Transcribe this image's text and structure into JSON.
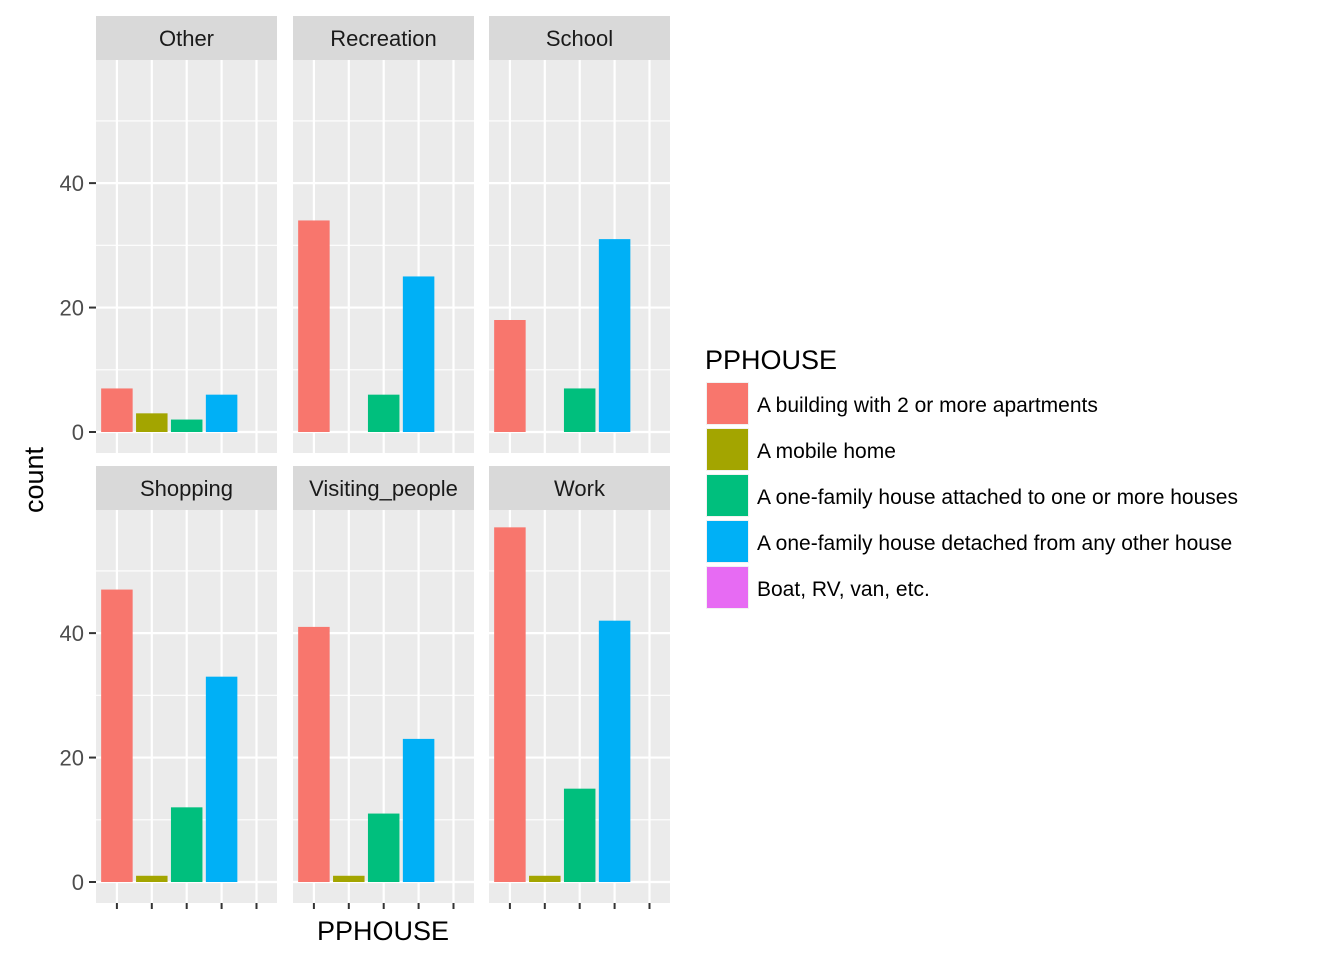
{
  "chart_data": {
    "type": "bar",
    "xlabel": "PPHOUSE",
    "ylabel": "count",
    "ylim": [
      0,
      60
    ],
    "yticks": [
      0,
      20,
      40
    ],
    "categories": [
      "A building with 2 or more apartments",
      "A mobile home",
      "A one-family house attached to one or more houses",
      "A one-family house detached from any other house",
      "Boat, RV, van, etc."
    ],
    "legend": {
      "title": "PPHOUSE",
      "position": "right",
      "colors": [
        "#F8766D",
        "#A3A500",
        "#00BF7D",
        "#00B0F6",
        "#E76BF3"
      ]
    },
    "facets": [
      {
        "name": "Other",
        "values": [
          7,
          3,
          2,
          6,
          0
        ]
      },
      {
        "name": "Recreation",
        "values": [
          34,
          0,
          6,
          25,
          0
        ]
      },
      {
        "name": "School",
        "values": [
          18,
          0,
          7,
          31,
          0
        ]
      },
      {
        "name": "Shopping",
        "values": [
          47,
          1,
          12,
          33,
          0
        ]
      },
      {
        "name": "Visiting_people",
        "values": [
          41,
          1,
          11,
          23,
          0
        ]
      },
      {
        "name": "Work",
        "values": [
          57,
          1,
          15,
          42,
          0
        ]
      }
    ]
  }
}
